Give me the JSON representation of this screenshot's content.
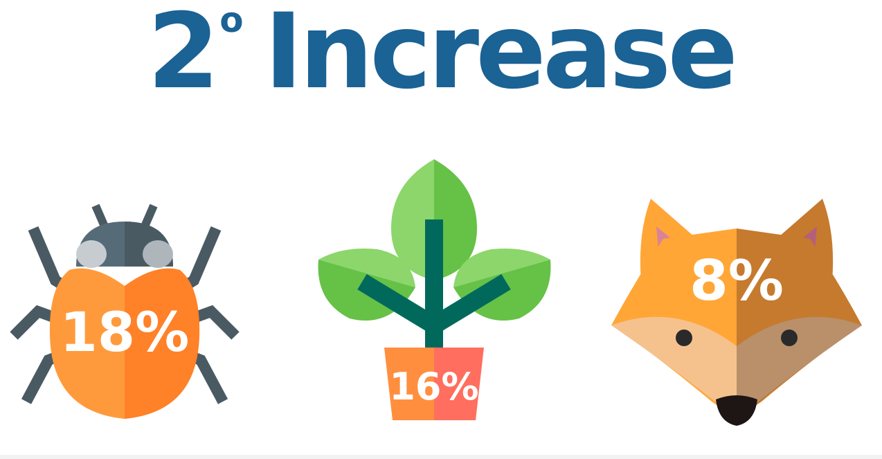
{
  "title": {
    "number": "2",
    "degree": "o",
    "word": "Increase"
  },
  "items": [
    {
      "icon": "beetle-icon",
      "value": "18%"
    },
    {
      "icon": "plant-pot-icon",
      "value": "16%"
    },
    {
      "icon": "fox-icon",
      "value": "8%"
    }
  ],
  "colors": {
    "title": "#1b6295",
    "orange_light": "#ff9a3c",
    "orange_dark": "#ff8128",
    "leaf_light": "#8cd66b",
    "leaf_dark": "#66c147",
    "stem": "#00695c",
    "pot_left": "#ff8f3f",
    "pot_right": "#ff6e5e"
  }
}
